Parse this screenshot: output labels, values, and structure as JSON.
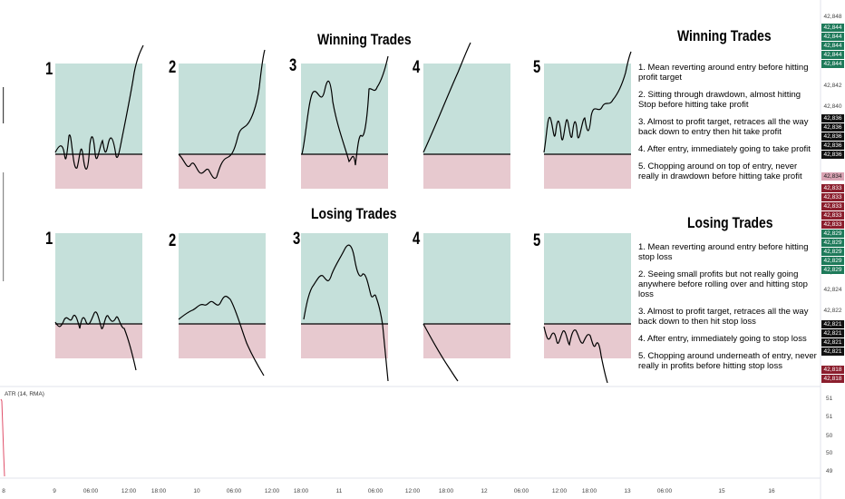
{
  "winning": {
    "title": "Winning Trades",
    "side_title": "Winning Trades",
    "notes": [
      "1. Mean reverting around entry before hitting profit target",
      "2. Sitting through drawdown, almost hitting Stop before hitting take profit",
      "3. Almost to profit target, retraces all the way back down to entry then hit take profit",
      "4. After entry, immediately going to take profit",
      "5. Chopping around on top of entry, never really in drawdown before hitting take profit"
    ]
  },
  "losing": {
    "title": "Losing Trades",
    "side_title": "Losing Trades",
    "notes": [
      "1. Mean reverting around entry before hitting stop loss",
      "2. Seeing small profits but not really going anywhere before rolling over and hitting stop loss",
      "3. Almost to profit target, retraces all the way back down to then hit stop loss",
      "4. After entry, immediately going to stop loss",
      "5. Chopping around underneath of entry, never really in profits before hitting stop loss"
    ]
  },
  "panel_numbers": [
    "1",
    "2",
    "3",
    "4",
    "5"
  ],
  "price_axis": {
    "labels": [
      "42,848",
      "42,842",
      "42,840",
      "42,826",
      "42,824",
      "42,822"
    ],
    "tags": [
      {
        "text": "42,844",
        "color": "#1e7a5a"
      },
      {
        "text": "42,844",
        "color": "#1e7a5a"
      },
      {
        "text": "42,844",
        "color": "#1e7a5a"
      },
      {
        "text": "42,844",
        "color": "#1e7a5a"
      },
      {
        "text": "42,844",
        "color": "#1e7a5a"
      },
      {
        "text": "42,836",
        "color": "#111111"
      },
      {
        "text": "42,836",
        "color": "#111111"
      },
      {
        "text": "42,836",
        "color": "#111111"
      },
      {
        "text": "42,836",
        "color": "#111111"
      },
      {
        "text": "42,836",
        "color": "#111111"
      },
      {
        "text": "42,834",
        "color": "#d9a3b3"
      },
      {
        "text": "42,833",
        "color": "#8b1e2d"
      },
      {
        "text": "42,833",
        "color": "#8b1e2d"
      },
      {
        "text": "42,833",
        "color": "#8b1e2d"
      },
      {
        "text": "42,833",
        "color": "#8b1e2d"
      },
      {
        "text": "42,833",
        "color": "#8b1e2d"
      },
      {
        "text": "42,829",
        "color": "#1e7a5a"
      },
      {
        "text": "42,829",
        "color": "#1e7a5a"
      },
      {
        "text": "42,829",
        "color": "#1e7a5a"
      },
      {
        "text": "42,829",
        "color": "#1e7a5a"
      },
      {
        "text": "42,829",
        "color": "#1e7a5a"
      },
      {
        "text": "42,821",
        "color": "#111111"
      },
      {
        "text": "42,821",
        "color": "#111111"
      },
      {
        "text": "42,821",
        "color": "#111111"
      },
      {
        "text": "42,821",
        "color": "#111111"
      },
      {
        "text": "42,818",
        "color": "#8b1e2d"
      },
      {
        "text": "42,818",
        "color": "#8b1e2d"
      }
    ]
  },
  "indicator": {
    "label": "ATR (14, RMA)",
    "values": [
      "51",
      "51",
      "50",
      "50",
      "49"
    ]
  },
  "time_axis": [
    "8",
    "9",
    "06:00",
    "12:00",
    "18:00",
    "10",
    "06:00",
    "12:00",
    "18:00",
    "11",
    "06:00",
    "12:00",
    "18:00",
    "12",
    "06:00",
    "12:00",
    "18:00",
    "13",
    "06:00",
    "15",
    "16"
  ],
  "colors": {
    "profit_zone": "#c5e0da",
    "profit_border": "#8fc3b6",
    "loss_zone": "#e7c9cf",
    "entry_line": "#000000",
    "price_line": "#000000"
  }
}
